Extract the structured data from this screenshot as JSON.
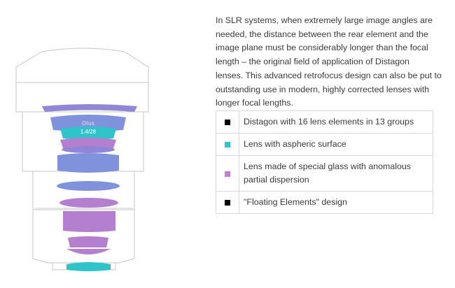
{
  "description": {
    "lines": [
      "In SLR systems, when extremely large image angles are",
      "needed, the distance between the rear element and the",
      "image plane must be considerably longer than the focal",
      "length – the original field of application of Distagon",
      "lenses. This advanced retrofocus design can also be put to",
      "outstanding use in modern, highly corrected lenses with",
      "longer focal lengths."
    ]
  },
  "lens_label": {
    "name": "Otus",
    "spec": "1.4/28"
  },
  "legend": [
    {
      "color": "#000000",
      "label": "Distagon with 16 lens elements in 13 groups"
    },
    {
      "color": "#2ec4ca",
      "label": "Lens with aspheric surface"
    },
    {
      "color": "#c27fcf",
      "label": "Lens made of special glass with anomalous partial dispersion"
    },
    {
      "color": "#000000",
      "label": "\"Floating Elements\" design"
    }
  ]
}
